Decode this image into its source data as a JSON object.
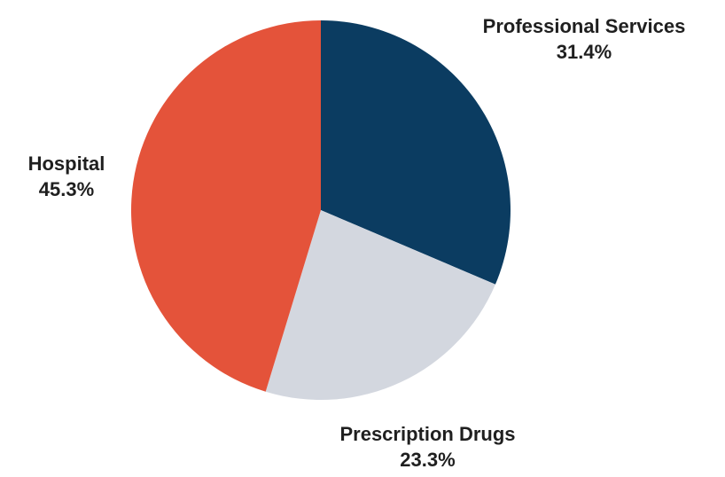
{
  "chart_data": {
    "type": "pie",
    "slices": [
      {
        "label": "Professional Services",
        "value": 31.4,
        "value_label": "31.4%",
        "color": "#0b3c61"
      },
      {
        "label": "Prescription Drugs",
        "value": 23.3,
        "value_label": "23.3%",
        "color": "#d3d7df"
      },
      {
        "label": "Hospital",
        "value": 45.3,
        "value_label": "45.3%",
        "color": "#e4533a"
      }
    ],
    "start_angle": "12 o'clock",
    "direction": "clockwise"
  }
}
